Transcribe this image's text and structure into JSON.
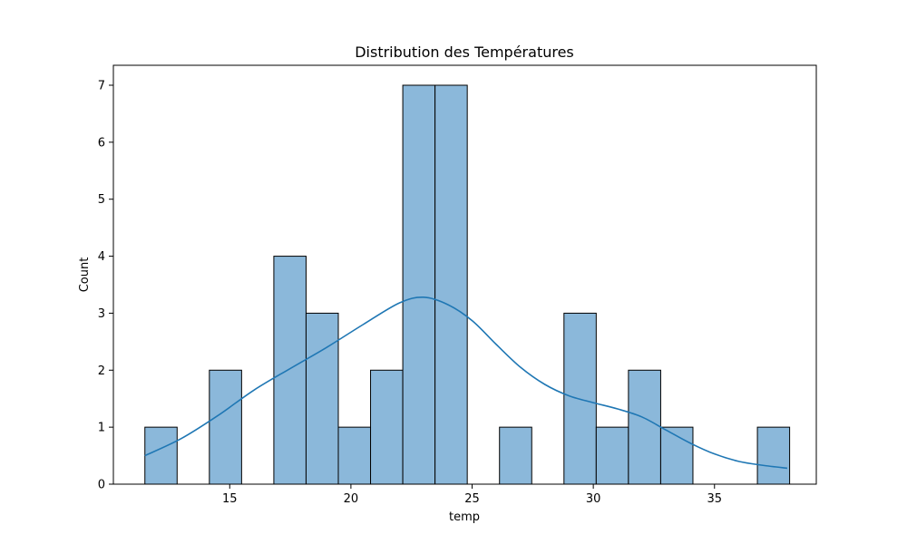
{
  "chart_data": {
    "type": "bar",
    "title": "Distribution des Températures",
    "xlabel": "temp",
    "ylabel": "Count",
    "xlim": [
      10.2,
      39.2
    ],
    "ylim": [
      0,
      7.35
    ],
    "x_ticks": [
      15,
      20,
      25,
      30,
      35
    ],
    "y_ticks": [
      0,
      1,
      2,
      3,
      4,
      5,
      6,
      7
    ],
    "grid": false,
    "bar_color": "#8bb8da",
    "edge_color": "#000000",
    "line_color": "#1f77b4",
    "bins": [
      {
        "x0": 11.5,
        "x1": 12.83,
        "count": 1
      },
      {
        "x0": 12.83,
        "x1": 14.16,
        "count": 0
      },
      {
        "x0": 14.16,
        "x1": 15.49,
        "count": 2
      },
      {
        "x0": 15.49,
        "x1": 16.82,
        "count": 0
      },
      {
        "x0": 16.82,
        "x1": 18.15,
        "count": 4
      },
      {
        "x0": 18.15,
        "x1": 19.48,
        "count": 3
      },
      {
        "x0": 19.48,
        "x1": 20.81,
        "count": 1
      },
      {
        "x0": 20.81,
        "x1": 22.14,
        "count": 2
      },
      {
        "x0": 22.14,
        "x1": 23.47,
        "count": 7
      },
      {
        "x0": 23.47,
        "x1": 24.8,
        "count": 7
      },
      {
        "x0": 24.8,
        "x1": 26.13,
        "count": 0
      },
      {
        "x0": 26.13,
        "x1": 27.46,
        "count": 1
      },
      {
        "x0": 27.46,
        "x1": 28.79,
        "count": 0
      },
      {
        "x0": 28.79,
        "x1": 30.12,
        "count": 3
      },
      {
        "x0": 30.12,
        "x1": 31.45,
        "count": 1
      },
      {
        "x0": 31.45,
        "x1": 32.78,
        "count": 2
      },
      {
        "x0": 32.78,
        "x1": 34.11,
        "count": 1
      },
      {
        "x0": 34.11,
        "x1": 35.44,
        "count": 0
      },
      {
        "x0": 35.44,
        "x1": 36.77,
        "count": 0
      },
      {
        "x0": 36.77,
        "x1": 38.1,
        "count": 1
      }
    ],
    "kde": {
      "x": [
        11.5,
        13,
        14.5,
        16,
        17.5,
        19,
        20.5,
        22,
        23,
        24,
        25,
        26,
        27,
        28,
        29,
        30,
        31,
        32,
        33,
        34,
        35,
        36,
        37,
        38
      ],
      "y": [
        0.5,
        0.8,
        1.2,
        1.65,
        2.03,
        2.4,
        2.8,
        3.18,
        3.28,
        3.15,
        2.87,
        2.45,
        2.05,
        1.75,
        1.55,
        1.43,
        1.32,
        1.18,
        0.95,
        0.72,
        0.53,
        0.4,
        0.33,
        0.28
      ]
    }
  }
}
